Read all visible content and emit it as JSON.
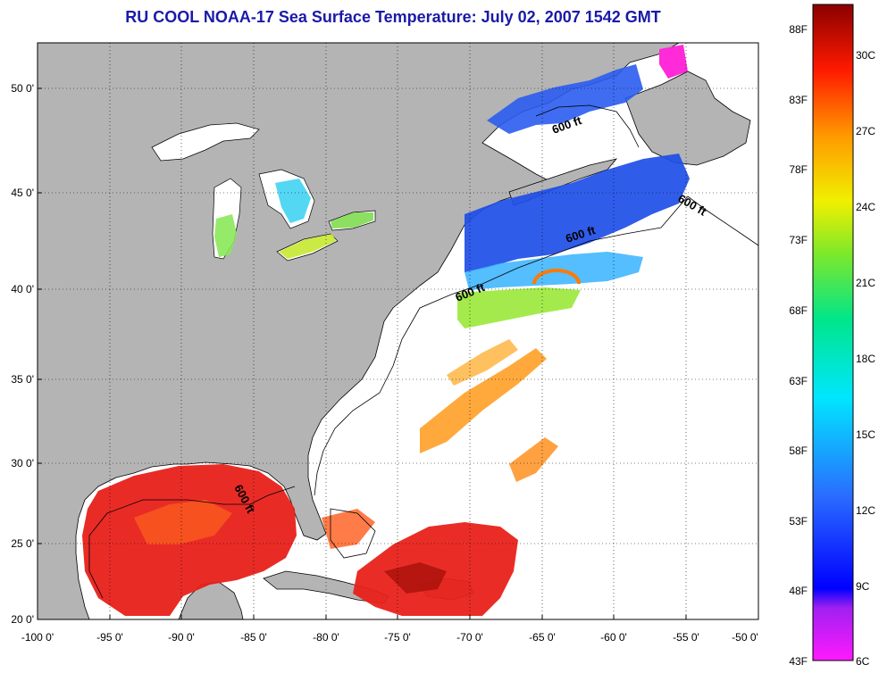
{
  "title": "RU COOL  NOAA-17  Sea Surface Temperature:  July 02, 2007 1542 GMT",
  "lon_ticks": [
    "-100 0'",
    "-95 0'",
    "-90 0'",
    "-85 0'",
    "-80 0'",
    "-75 0'",
    "-70 0'",
    "-65 0'",
    "-60 0'",
    "-55 0'",
    "-50 0'"
  ],
  "lat_ticks": [
    "50 0'",
    "45 0'",
    "40 0'",
    "35 0'",
    "30 0'",
    "25 0'",
    "20 0'"
  ],
  "contour_labels": [
    "600 ft",
    "600 ft",
    "600 ft",
    "600 ft",
    "600 ft"
  ],
  "colorbar": {
    "fahrenheit": [
      "88F",
      "83F",
      "78F",
      "73F",
      "68F",
      "63F",
      "58F",
      "53F",
      "48F",
      "43F"
    ],
    "celsius": [
      "30C",
      "27C",
      "24C",
      "21C",
      "18C",
      "15C",
      "12C",
      "9C",
      "6C"
    ]
  },
  "colors": {
    "land": "#b4b4b4",
    "ocean_no_data": "#ffffff",
    "title": "#1a1aa8"
  }
}
